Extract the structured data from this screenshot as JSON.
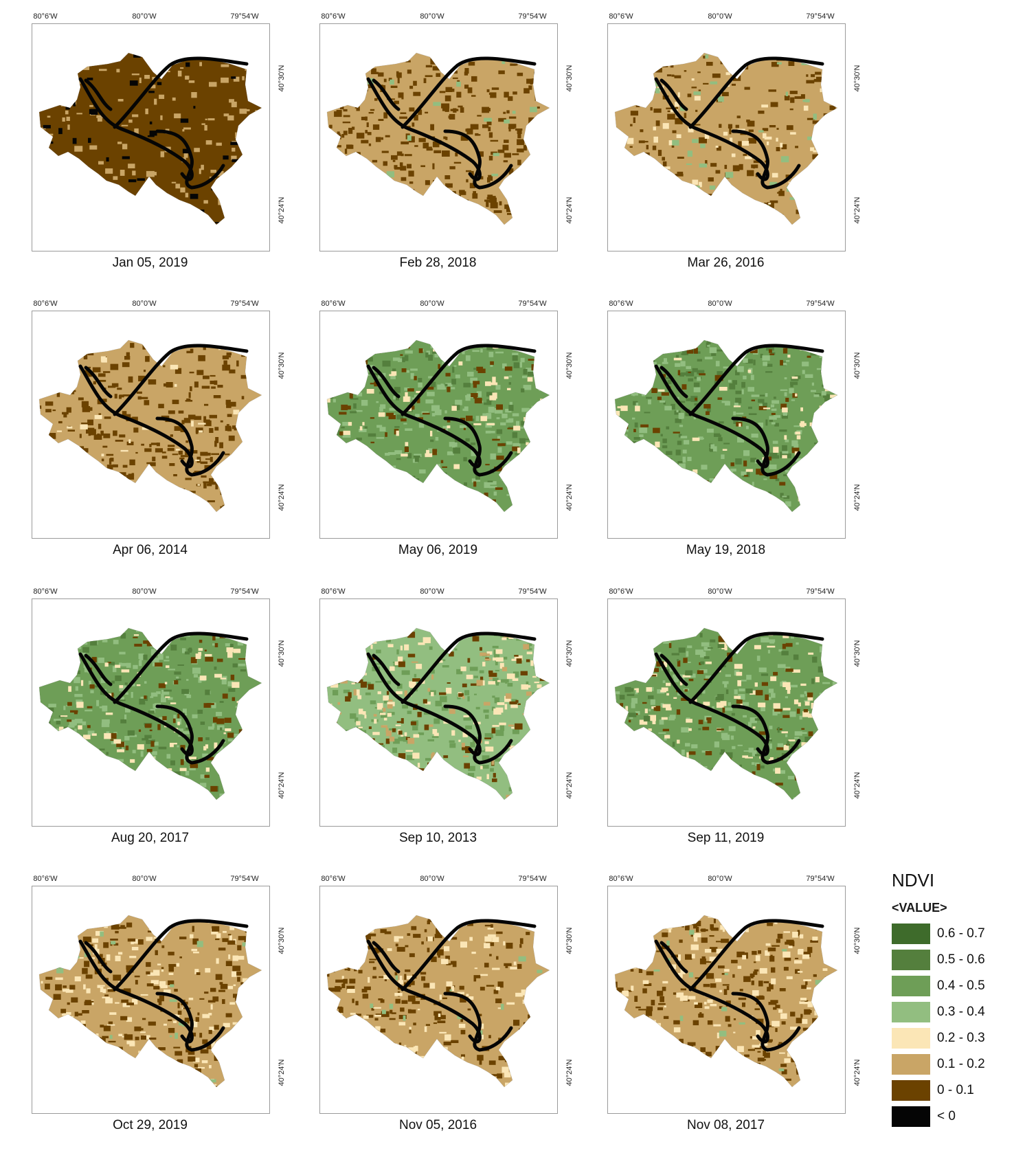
{
  "axis_ticks": {
    "top": [
      "80°6'W",
      "80°0'W",
      "79°54'W"
    ],
    "right": [
      "40°30'N",
      "40°24'N"
    ]
  },
  "palette": {
    "v6": "#3e6b2b",
    "v5": "#547f3d",
    "v4": "#6e9e57",
    "v3": "#92be80",
    "v2": "#fbe6b6",
    "v1": "#c9a566",
    "v0": "#6b4200",
    "neg": "#050505"
  },
  "panels": [
    {
      "date": "Jan 05, 2019",
      "base": "v0",
      "patches": [
        {
          "c": "v1",
          "f": 0.18
        },
        {
          "c": "neg",
          "f": 0.06
        }
      ]
    },
    {
      "date": "Feb 28, 2018",
      "base": "v1",
      "patches": [
        {
          "c": "v0",
          "f": 0.45
        },
        {
          "c": "v3",
          "f": 0.03
        }
      ]
    },
    {
      "date": "Mar 26, 2016",
      "base": "v1",
      "patches": [
        {
          "c": "v0",
          "f": 0.25
        },
        {
          "c": "v2",
          "f": 0.08
        },
        {
          "c": "v3",
          "f": 0.05
        }
      ]
    },
    {
      "date": "Apr 06, 2014",
      "base": "v1",
      "patches": [
        {
          "c": "v0",
          "f": 0.4
        },
        {
          "c": "v2",
          "f": 0.04
        }
      ]
    },
    {
      "date": "May 06, 2019",
      "base": "v4",
      "patches": [
        {
          "c": "v3",
          "f": 0.3
        },
        {
          "c": "v5",
          "f": 0.15
        },
        {
          "c": "v0",
          "f": 0.12
        },
        {
          "c": "v2",
          "f": 0.08
        }
      ]
    },
    {
      "date": "May 19, 2018",
      "base": "v4",
      "patches": [
        {
          "c": "v5",
          "f": 0.25
        },
        {
          "c": "v3",
          "f": 0.2
        },
        {
          "c": "v0",
          "f": 0.1
        },
        {
          "c": "v2",
          "f": 0.08
        }
      ]
    },
    {
      "date": "Aug 20, 2017",
      "base": "v4",
      "patches": [
        {
          "c": "v3",
          "f": 0.3
        },
        {
          "c": "v5",
          "f": 0.12
        },
        {
          "c": "v0",
          "f": 0.12
        },
        {
          "c": "v2",
          "f": 0.1
        }
      ]
    },
    {
      "date": "Sep 10, 2013",
      "base": "v3",
      "patches": [
        {
          "c": "v4",
          "f": 0.25
        },
        {
          "c": "v2",
          "f": 0.2
        },
        {
          "c": "v0",
          "f": 0.12
        },
        {
          "c": "v1",
          "f": 0.08
        }
      ]
    },
    {
      "date": "Sep 11, 2019",
      "base": "v4",
      "patches": [
        {
          "c": "v3",
          "f": 0.25
        },
        {
          "c": "v2",
          "f": 0.15
        },
        {
          "c": "v0",
          "f": 0.12
        },
        {
          "c": "v5",
          "f": 0.08
        }
      ]
    },
    {
      "date": "Oct 29, 2019",
      "base": "v1",
      "patches": [
        {
          "c": "v2",
          "f": 0.2
        },
        {
          "c": "v0",
          "f": 0.3
        },
        {
          "c": "v3",
          "f": 0.03
        }
      ]
    },
    {
      "date": "Nov 05, 2016",
      "base": "v1",
      "patches": [
        {
          "c": "v0",
          "f": 0.3
        },
        {
          "c": "v2",
          "f": 0.15
        },
        {
          "c": "v3",
          "f": 0.02
        }
      ]
    },
    {
      "date": "Nov 08, 2017",
      "base": "v1",
      "patches": [
        {
          "c": "v0",
          "f": 0.32
        },
        {
          "c": "v2",
          "f": 0.15
        },
        {
          "c": "v3",
          "f": 0.02
        }
      ]
    }
  ],
  "legend": {
    "title": "NDVI",
    "subtitle": "<VALUE>",
    "items": [
      {
        "label": "0.6 - 0.7",
        "color": "#3e6b2b"
      },
      {
        "label": "0.5 - 0.6",
        "color": "#547f3d"
      },
      {
        "label": "0.4 - 0.5",
        "color": "#6e9e57"
      },
      {
        "label": "0.3 - 0.4",
        "color": "#92be80"
      },
      {
        "label": "0.2 - 0.3",
        "color": "#fbe6b6"
      },
      {
        "label": "0.1 - 0.2",
        "color": "#c9a566"
      },
      {
        "label": "0 - 0.1",
        "color": "#6b4200"
      },
      {
        "label": "< 0",
        "color": "#050505"
      }
    ]
  }
}
